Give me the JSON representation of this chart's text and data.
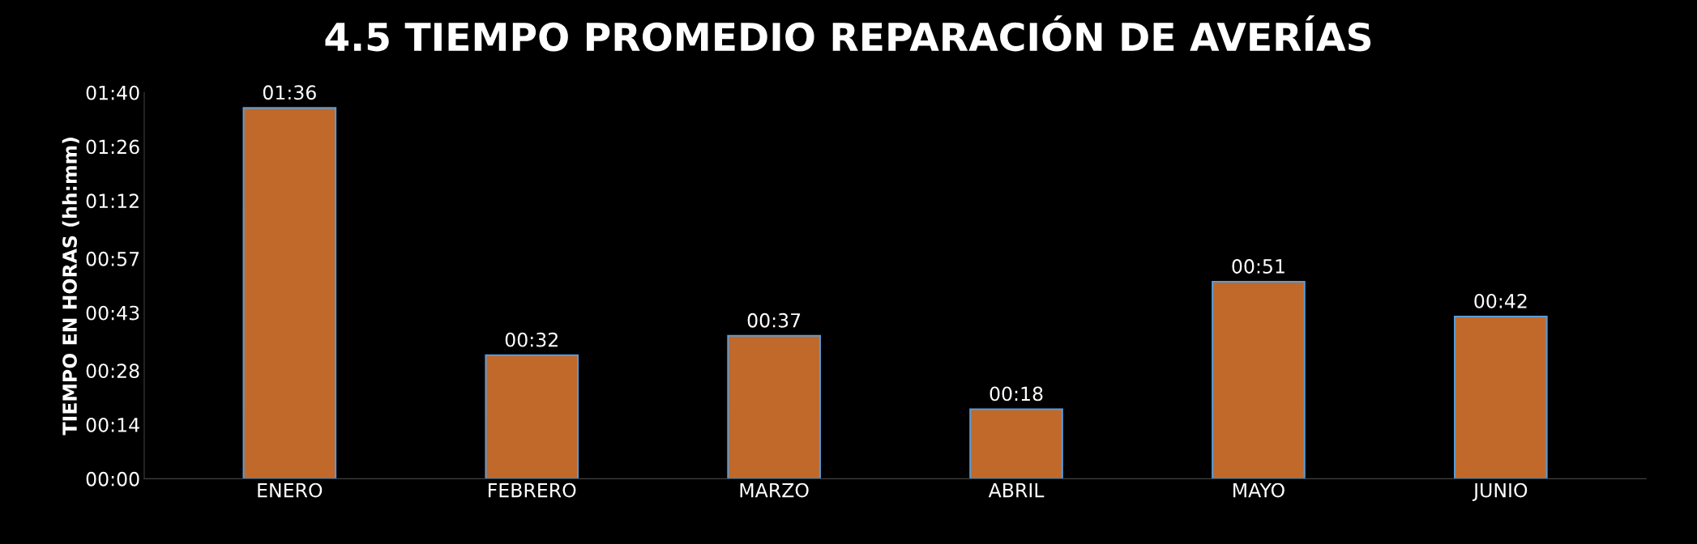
{
  "chart_data": {
    "type": "bar",
    "title": "4.5 TIEMPO PROMEDIO REPARACIÓN DE AVERÍAS",
    "ylabel": "TIEMPO EN HORAS (hh:mm)",
    "categories": [
      "ENERO",
      "FEBRERO",
      "MARZO",
      "ABRIL",
      "MAYO",
      "JUNIO"
    ],
    "values": [
      1.6,
      0.5333,
      0.6167,
      0.3,
      0.85,
      0.7
    ],
    "value_labels": [
      "01:36",
      "00:32",
      "00:37",
      "00:18",
      "00:51",
      "00:42"
    ],
    "color": "#c0692a",
    "ylim": [
      0,
      1.6667
    ],
    "yticks": [
      {
        "value": 0,
        "label": "00:00"
      },
      {
        "value": 0.2333,
        "label": "00:14"
      },
      {
        "value": 0.4667,
        "label": "00:28"
      },
      {
        "value": 0.7167,
        "label": "00:43"
      },
      {
        "value": 0.95,
        "label": "00:57"
      },
      {
        "value": 1.2,
        "label": "01:12"
      },
      {
        "value": 1.4333,
        "label": "01:26"
      },
      {
        "value": 1.6667,
        "label": "01:40"
      }
    ],
    "grid": false,
    "legend": false
  }
}
